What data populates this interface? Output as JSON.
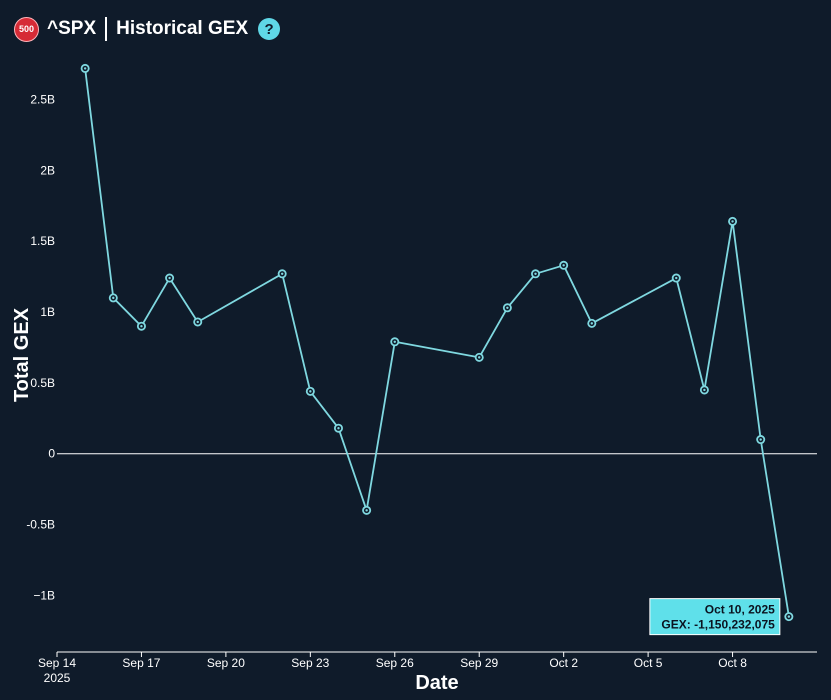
{
  "header": {
    "badge": "500",
    "symbol": "^SPX",
    "title": "Historical GEX",
    "help": "?"
  },
  "colors": {
    "background": "#0f1b2a",
    "line": "#7fd8e0",
    "tooltip": "#5fe0ea",
    "badge": "#d62b36"
  },
  "chart_data": {
    "type": "line",
    "xlabel": "Date",
    "ylabel": "Total GEX",
    "ylim": [
      -1.4,
      2.85
    ],
    "y_ticks": [
      {
        "value": 2.5,
        "label": "2.5B"
      },
      {
        "value": 2,
        "label": "2B"
      },
      {
        "value": 1.5,
        "label": "1.5B"
      },
      {
        "value": 1,
        "label": "1B"
      },
      {
        "value": 0.5,
        "label": "0.5B"
      },
      {
        "value": 0,
        "label": "0"
      },
      {
        "value": -0.5,
        "label": "-0.5B"
      },
      {
        "value": -1,
        "label": "−1B"
      }
    ],
    "x_ticks": [
      {
        "date": "2025-09-14",
        "label": "Sep 14",
        "sub": "2025"
      },
      {
        "date": "2025-09-17",
        "label": "Sep 17"
      },
      {
        "date": "2025-09-20",
        "label": "Sep 20"
      },
      {
        "date": "2025-09-23",
        "label": "Sep 23"
      },
      {
        "date": "2025-09-26",
        "label": "Sep 26"
      },
      {
        "date": "2025-09-29",
        "label": "Sep 29"
      },
      {
        "date": "2025-10-02",
        "label": "Oct 2"
      },
      {
        "date": "2025-10-05",
        "label": "Oct 5"
      },
      {
        "date": "2025-10-08",
        "label": "Oct 8"
      }
    ],
    "x_range": [
      "2025-09-14",
      "2025-10-11"
    ],
    "points": [
      {
        "date": "2025-09-15",
        "value": 2.72
      },
      {
        "date": "2025-09-16",
        "value": 1.1
      },
      {
        "date": "2025-09-17",
        "value": 0.9
      },
      {
        "date": "2025-09-18",
        "value": 1.24
      },
      {
        "date": "2025-09-19",
        "value": 0.93
      },
      {
        "date": "2025-09-22",
        "value": 1.27
      },
      {
        "date": "2025-09-23",
        "value": 0.44
      },
      {
        "date": "2025-09-24",
        "value": 0.18
      },
      {
        "date": "2025-09-25",
        "value": -0.4
      },
      {
        "date": "2025-09-26",
        "value": 0.79
      },
      {
        "date": "2025-09-29",
        "value": 0.68
      },
      {
        "date": "2025-09-30",
        "value": 1.03
      },
      {
        "date": "2025-10-01",
        "value": 1.27
      },
      {
        "date": "2025-10-02",
        "value": 1.33
      },
      {
        "date": "2025-10-03",
        "value": 0.92
      },
      {
        "date": "2025-10-06",
        "value": 1.24
      },
      {
        "date": "2025-10-07",
        "value": 0.45
      },
      {
        "date": "2025-10-08",
        "value": 1.64
      },
      {
        "date": "2025-10-09",
        "value": 0.1
      },
      {
        "date": "2025-10-10",
        "value": -1.150232075
      }
    ],
    "tooltip": {
      "date": "2025-10-10",
      "line1": "Oct 10, 2025",
      "line2": "GEX: -1,150,232,075"
    }
  }
}
